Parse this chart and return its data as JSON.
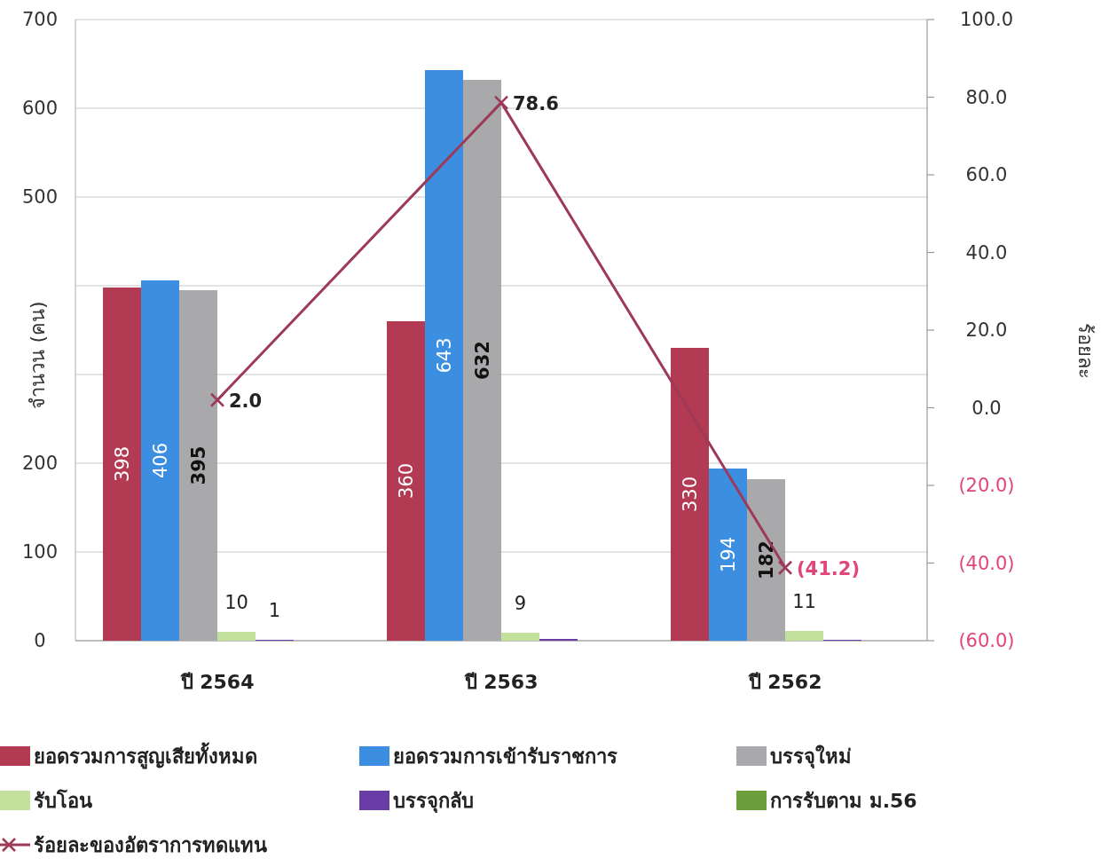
{
  "chart_data": {
    "type": "bar",
    "categories": [
      "ปี 2564",
      "ปี 2563",
      "ปี 2562"
    ],
    "ylabel": "จำนวน (คน)",
    "y2label": "ร้อยละ",
    "ylim": [
      0,
      700
    ],
    "yticks": [
      0,
      100,
      200,
      {
        "value": 300,
        "label": null
      },
      {
        "value": 400,
        "label": null
      },
      500,
      600,
      700
    ],
    "y2lim": [
      -60,
      100
    ],
    "y2ticks": [
      {
        "value": -60,
        "label": "(60.0)"
      },
      {
        "value": -40,
        "label": "(40.0)"
      },
      {
        "value": -20,
        "label": "(20.0)"
      },
      {
        "value": 0,
        "label": "0.0"
      },
      {
        "value": 20,
        "label": "20.0"
      },
      {
        "value": 40,
        "label": "40.0"
      },
      {
        "value": 60,
        "label": "60.0"
      },
      {
        "value": 80,
        "label": "80.0"
      },
      {
        "value": 100,
        "label": "100.0"
      }
    ],
    "grid": "y",
    "legend": "bottom",
    "series": [
      {
        "name": "ยอดรวมการสูญเสียทั้งหมด",
        "color": "#b23a52",
        "values": [
          398,
          360,
          330
        ],
        "value_labels": [
          "398",
          "360",
          "330"
        ]
      },
      {
        "name": "ยอดรวมการเข้ารับราชการ",
        "color": "#3c8fe0",
        "values": [
          406,
          643,
          194
        ],
        "value_labels": [
          "406",
          "643",
          "194"
        ]
      },
      {
        "name": "บรรจุใหม่",
        "color": "#a9a9ab",
        "values": [
          395,
          632,
          182
        ],
        "value_labels": [
          "395",
          "632",
          "182"
        ]
      },
      {
        "name": "รับโอน",
        "color": "#c3e09c",
        "values": [
          10,
          9,
          11
        ],
        "value_labels": [
          "10",
          "9",
          "11"
        ]
      },
      {
        "name": "บรรจุกลับ",
        "color": "#6a3da6",
        "values": [
          1,
          2,
          1
        ],
        "value_labels": [
          "1",
          null,
          null
        ]
      },
      {
        "name": "การรับตาม ม.56",
        "color": "#6c9e3c",
        "values": [
          0,
          0,
          0
        ]
      },
      {
        "name": "ร้อยละของอัตราการทดแทน",
        "type": "line",
        "axis": "y2",
        "color": "#9c3a58",
        "marker": "cross",
        "values": [
          2.0,
          78.6,
          -41.2
        ],
        "value_labels": [
          "2.0",
          "78.6",
          "(41.2)"
        ]
      }
    ]
  }
}
